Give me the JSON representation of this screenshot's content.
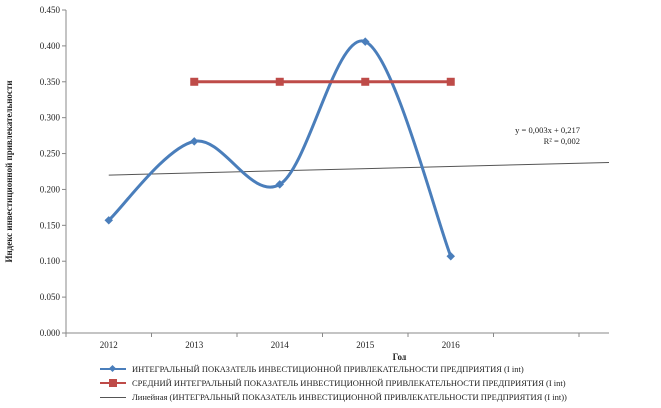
{
  "chart_data": {
    "type": "line",
    "title": "",
    "xlabel": "Год",
    "ylabel": "Индекс инвестиционной привлекательности",
    "categories": [
      "2012",
      "2013",
      "2014",
      "2015",
      "2016"
    ],
    "ylim": [
      0,
      0.45
    ],
    "yticks": [
      "0.000",
      "0.050",
      "0.100",
      "0.150",
      "0.200",
      "0.250",
      "0.300",
      "0.350",
      "0.400",
      "0.450"
    ],
    "grid": false,
    "legend_position": "bottom",
    "series": [
      {
        "name": "ИНТЕГРАЛЬНЫЙ ПОКАЗАТЕЛЬ ИНВЕСТИЦИОННОЙ ПРИВЛЕКАТЕЛЬНОСТИ ПРЕДПРИЯТИЯ (I int)",
        "values": [
          0.157,
          0.267,
          0.207,
          0.406,
          0.107
        ],
        "color": "#4a7ebb",
        "marker": "diamond",
        "smooth": true
      },
      {
        "name": "СРЕДНИЙ ИНТЕГРАЛЬНЫЙ ПОКАЗАТЕЛЬ ИНВЕСТИЦИОННОЙ ПРИВЛЕКАТЕЛЬНОСТИ ПРЕДПРИЯТИЯ (I int)",
        "values": [
          null,
          0.35,
          0.35,
          0.35,
          0.35
        ],
        "color": "#be4b48",
        "marker": "square",
        "smooth": false
      }
    ],
    "trendline": {
      "name": "Линейная (ИНТЕГРАЛЬНЫЙ ПОКАЗАТЕЛЬ ИНВЕСТИЦИОННОЙ ПРИВЛЕКАТЕЛЬНОСТИ ПРЕДПРИЯТИЯ (I int))",
      "type": "linear",
      "slope": 0.003,
      "intercept": 0.217,
      "equation": "y = 0,003x + 0,217",
      "r_squared": "R² = 0,002",
      "color": "#555555"
    }
  }
}
